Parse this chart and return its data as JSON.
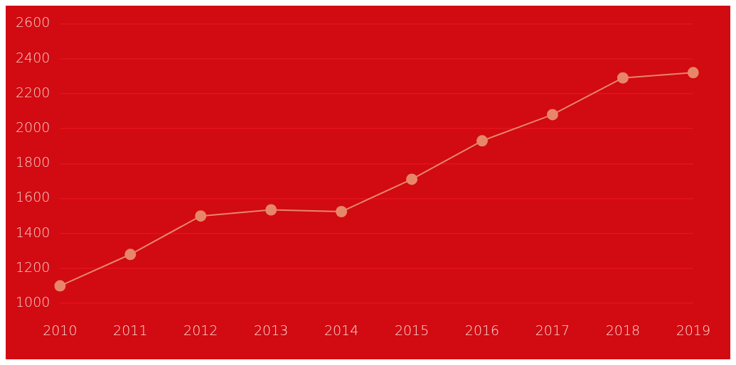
{
  "chart_data": {
    "type": "line",
    "categories": [
      "2010",
      "2011",
      "2012",
      "2013",
      "2014",
      "2015",
      "2016",
      "2017",
      "2018",
      "2019"
    ],
    "series": [
      {
        "color": "#e8866a",
        "values": [
          1100,
          1280,
          1500,
          1535,
          1525,
          1710,
          1930,
          2080,
          2290,
          2320
        ]
      }
    ],
    "ylim": [
      1000,
      2600
    ],
    "yticks": [
      1000,
      1200,
      1400,
      1600,
      1800,
      2000,
      2200,
      2400,
      2600
    ],
    "grid": "y",
    "legend": false,
    "marker": "circle",
    "line_style": "solid"
  }
}
